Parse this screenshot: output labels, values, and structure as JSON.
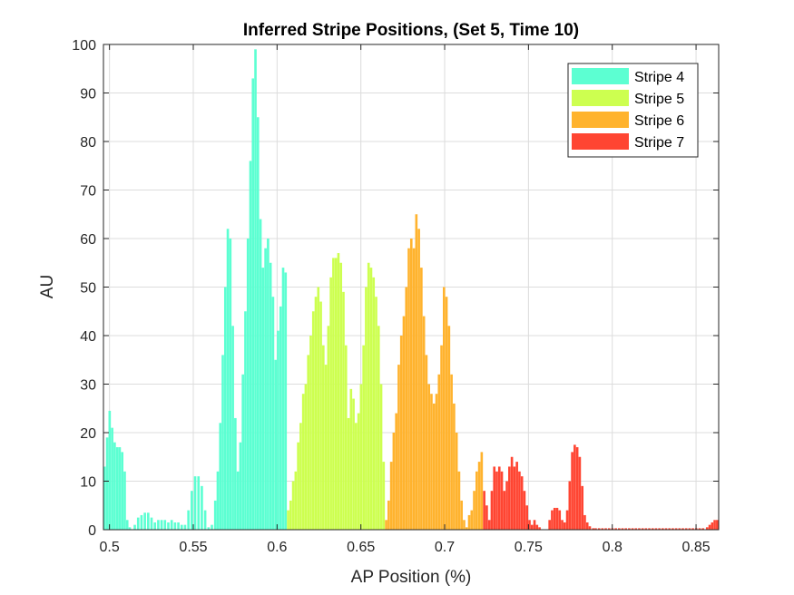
{
  "chart_data": {
    "type": "bar",
    "title": "Inferred Stripe Positions,  (Set 5, Time 10)",
    "xlabel": "AP Position (%)",
    "ylabel": "AU",
    "xlim": [
      0.4964,
      0.8635
    ],
    "ylim": [
      0,
      100
    ],
    "xticks": [
      0.5,
      0.55,
      0.6,
      0.65,
      0.7,
      0.75,
      0.8,
      0.85
    ],
    "xtick_labels": [
      "0.5",
      "0.55",
      "0.6",
      "0.65",
      "0.7",
      "0.75",
      "0.8",
      "0.85"
    ],
    "yticks": [
      0,
      10,
      20,
      30,
      40,
      50,
      60,
      70,
      80,
      90,
      100
    ],
    "ytick_labels": [
      "0",
      "10",
      "20",
      "30",
      "40",
      "50",
      "60",
      "70",
      "80",
      "90",
      "100"
    ],
    "grid": true,
    "legend_position": "top-right",
    "bar_width": 0.0012,
    "series": [
      {
        "name": "Stripe 4",
        "color": "#5CFFD2",
        "points": [
          [
            0.497,
            13
          ],
          [
            0.4985,
            19
          ],
          [
            0.5,
            24.5
          ],
          [
            0.5015,
            21
          ],
          [
            0.503,
            18
          ],
          [
            0.5045,
            17
          ],
          [
            0.506,
            17
          ],
          [
            0.5075,
            16
          ],
          [
            0.509,
            12
          ],
          [
            0.5105,
            2
          ],
          [
            0.512,
            0.5
          ],
          [
            0.515,
            1
          ],
          [
            0.517,
            2.5
          ],
          [
            0.519,
            3
          ],
          [
            0.521,
            3.5
          ],
          [
            0.523,
            3.5
          ],
          [
            0.525,
            2.5
          ],
          [
            0.527,
            1.5
          ],
          [
            0.529,
            2
          ],
          [
            0.531,
            2
          ],
          [
            0.533,
            2
          ],
          [
            0.535,
            1.5
          ],
          [
            0.537,
            2
          ],
          [
            0.539,
            1.5
          ],
          [
            0.541,
            1.5
          ],
          [
            0.543,
            1
          ],
          [
            0.545,
            1
          ],
          [
            0.547,
            4
          ],
          [
            0.549,
            8
          ],
          [
            0.551,
            11
          ],
          [
            0.553,
            11
          ],
          [
            0.555,
            9
          ],
          [
            0.557,
            4
          ],
          [
            0.559,
            0.5
          ],
          [
            0.561,
            1
          ],
          [
            0.563,
            6
          ],
          [
            0.5645,
            12
          ],
          [
            0.566,
            22
          ],
          [
            0.5675,
            36
          ],
          [
            0.569,
            50
          ],
          [
            0.5705,
            62
          ],
          [
            0.572,
            60
          ],
          [
            0.5735,
            42
          ],
          [
            0.575,
            23
          ],
          [
            0.5765,
            12
          ],
          [
            0.578,
            18
          ],
          [
            0.5795,
            32
          ],
          [
            0.581,
            45
          ],
          [
            0.5825,
            60
          ],
          [
            0.584,
            76
          ],
          [
            0.5855,
            93
          ],
          [
            0.587,
            99
          ],
          [
            0.5885,
            85
          ],
          [
            0.59,
            64
          ],
          [
            0.5915,
            54
          ],
          [
            0.593,
            58
          ],
          [
            0.5945,
            60
          ],
          [
            0.596,
            55
          ],
          [
            0.5975,
            48
          ],
          [
            0.599,
            35
          ],
          [
            0.6005,
            41
          ],
          [
            0.602,
            46
          ],
          [
            0.6035,
            54
          ],
          [
            0.605,
            53
          ]
        ]
      },
      {
        "name": "Stripe 5",
        "color": "#CDFF50",
        "points": [
          [
            0.6065,
            4
          ],
          [
            0.608,
            6
          ],
          [
            0.6095,
            10
          ],
          [
            0.611,
            12
          ],
          [
            0.6125,
            18
          ],
          [
            0.614,
            22
          ],
          [
            0.6155,
            28
          ],
          [
            0.617,
            30
          ],
          [
            0.6185,
            36
          ],
          [
            0.62,
            40
          ],
          [
            0.6215,
            45
          ],
          [
            0.623,
            48
          ],
          [
            0.6245,
            50
          ],
          [
            0.626,
            47
          ],
          [
            0.6275,
            38
          ],
          [
            0.629,
            34
          ],
          [
            0.6305,
            42
          ],
          [
            0.632,
            52
          ],
          [
            0.6335,
            56
          ],
          [
            0.635,
            56
          ],
          [
            0.6365,
            57
          ],
          [
            0.638,
            55
          ],
          [
            0.6395,
            49
          ],
          [
            0.641,
            38
          ],
          [
            0.6425,
            23
          ],
          [
            0.644,
            29
          ],
          [
            0.6455,
            27
          ],
          [
            0.647,
            22
          ],
          [
            0.6485,
            24
          ],
          [
            0.65,
            30
          ],
          [
            0.6515,
            38
          ],
          [
            0.653,
            50
          ],
          [
            0.6545,
            55
          ],
          [
            0.656,
            54
          ],
          [
            0.6575,
            52
          ],
          [
            0.659,
            48
          ],
          [
            0.6605,
            42
          ],
          [
            0.662,
            30
          ],
          [
            0.6635,
            14
          ]
        ]
      },
      {
        "name": "Stripe 6",
        "color": "#FFB32E",
        "points": [
          [
            0.665,
            2
          ],
          [
            0.6665,
            6
          ],
          [
            0.668,
            14
          ],
          [
            0.6695,
            20
          ],
          [
            0.671,
            24
          ],
          [
            0.6725,
            34
          ],
          [
            0.674,
            40
          ],
          [
            0.6755,
            44
          ],
          [
            0.677,
            50
          ],
          [
            0.6785,
            58
          ],
          [
            0.68,
            60
          ],
          [
            0.6815,
            58
          ],
          [
            0.683,
            65
          ],
          [
            0.6845,
            62
          ],
          [
            0.686,
            54
          ],
          [
            0.6875,
            44
          ],
          [
            0.689,
            36
          ],
          [
            0.6905,
            30
          ],
          [
            0.692,
            28
          ],
          [
            0.6935,
            26
          ],
          [
            0.695,
            28
          ],
          [
            0.6965,
            32
          ],
          [
            0.698,
            38
          ],
          [
            0.6995,
            50
          ],
          [
            0.701,
            48
          ],
          [
            0.7025,
            42
          ],
          [
            0.704,
            32
          ],
          [
            0.7055,
            26
          ],
          [
            0.707,
            20
          ],
          [
            0.7085,
            12
          ],
          [
            0.71,
            6
          ],
          [
            0.7115,
            2
          ],
          [
            0.713,
            0.5
          ],
          [
            0.7145,
            3
          ],
          [
            0.716,
            4
          ],
          [
            0.7175,
            8
          ],
          [
            0.719,
            12
          ],
          [
            0.7205,
            14
          ],
          [
            0.722,
            16
          ]
        ]
      },
      {
        "name": "Stripe 7",
        "color": "#FF4532",
        "points": [
          [
            0.7235,
            8
          ],
          [
            0.725,
            5
          ],
          [
            0.7265,
            2
          ],
          [
            0.728,
            8
          ],
          [
            0.7295,
            13
          ],
          [
            0.731,
            12
          ],
          [
            0.7325,
            13
          ],
          [
            0.734,
            12
          ],
          [
            0.7355,
            8
          ],
          [
            0.737,
            10
          ],
          [
            0.7385,
            13
          ],
          [
            0.74,
            15
          ],
          [
            0.7415,
            13
          ],
          [
            0.743,
            14
          ],
          [
            0.7445,
            12
          ],
          [
            0.746,
            11
          ],
          [
            0.7475,
            8
          ],
          [
            0.749,
            5
          ],
          [
            0.7505,
            2
          ],
          [
            0.752,
            1
          ],
          [
            0.7535,
            2
          ],
          [
            0.755,
            1
          ],
          [
            0.7565,
            0.5
          ],
          [
            0.7625,
            2
          ],
          [
            0.764,
            4
          ],
          [
            0.7655,
            4.5
          ],
          [
            0.767,
            4.5
          ],
          [
            0.7685,
            4
          ],
          [
            0.77,
            2
          ],
          [
            0.7715,
            1.5
          ],
          [
            0.773,
            4
          ],
          [
            0.7745,
            10
          ],
          [
            0.776,
            16
          ],
          [
            0.7775,
            17.5
          ],
          [
            0.779,
            17
          ],
          [
            0.7805,
            15
          ],
          [
            0.782,
            9
          ],
          [
            0.7835,
            3
          ],
          [
            0.785,
            1.5
          ],
          [
            0.7865,
            0.7
          ],
          [
            0.7885,
            0.3
          ],
          [
            0.79,
            0.3
          ],
          [
            0.792,
            0.3
          ],
          [
            0.794,
            0.3
          ],
          [
            0.796,
            0.3
          ],
          [
            0.798,
            0.3
          ],
          [
            0.8,
            0.3
          ],
          [
            0.802,
            0.3
          ],
          [
            0.804,
            0.3
          ],
          [
            0.806,
            0.3
          ],
          [
            0.808,
            0.3
          ],
          [
            0.81,
            0.3
          ],
          [
            0.812,
            0.3
          ],
          [
            0.814,
            0.3
          ],
          [
            0.816,
            0.3
          ],
          [
            0.818,
            0.3
          ],
          [
            0.82,
            0.3
          ],
          [
            0.822,
            0.3
          ],
          [
            0.824,
            0.3
          ],
          [
            0.826,
            0.3
          ],
          [
            0.828,
            0.3
          ],
          [
            0.83,
            0.3
          ],
          [
            0.832,
            0.3
          ],
          [
            0.834,
            0.3
          ],
          [
            0.836,
            0.3
          ],
          [
            0.838,
            0.3
          ],
          [
            0.84,
            0.3
          ],
          [
            0.842,
            0.3
          ],
          [
            0.844,
            0.3
          ],
          [
            0.846,
            0.3
          ],
          [
            0.848,
            0.3
          ],
          [
            0.85,
            0.3
          ],
          [
            0.852,
            0.3
          ],
          [
            0.854,
            0.3
          ],
          [
            0.8565,
            0.5
          ],
          [
            0.858,
            1
          ],
          [
            0.8595,
            1.5
          ],
          [
            0.861,
            2
          ],
          [
            0.8625,
            2
          ]
        ]
      }
    ]
  }
}
